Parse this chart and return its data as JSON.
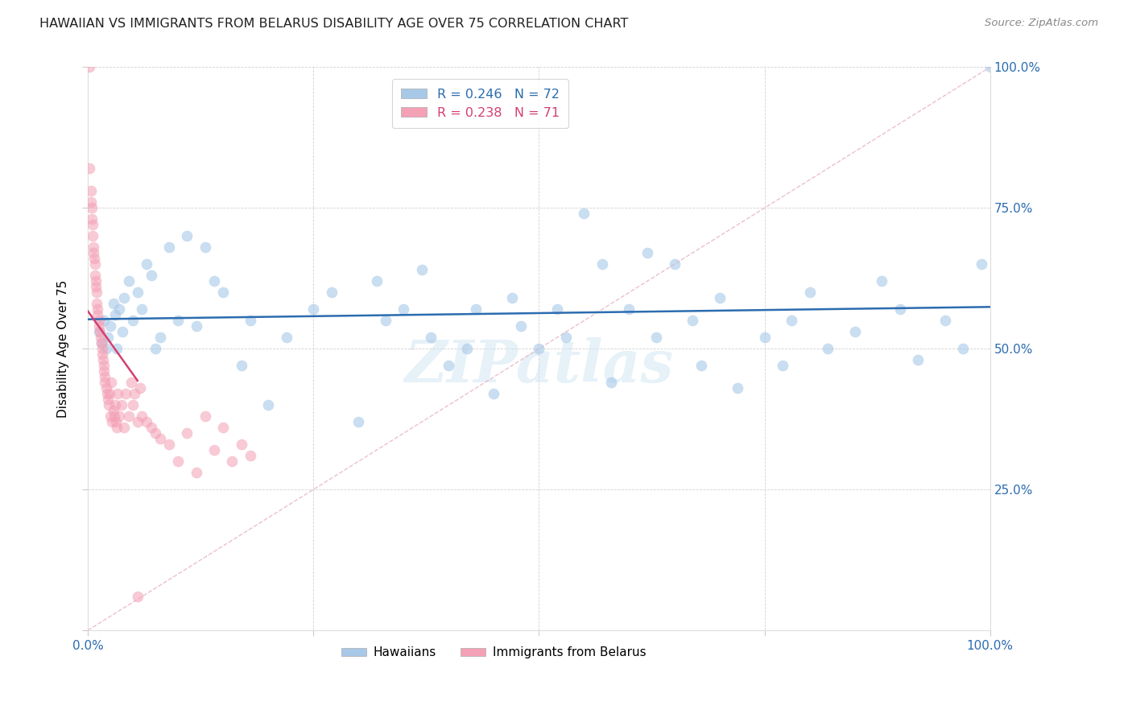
{
  "title": "HAWAIIAN VS IMMIGRANTS FROM BELARUS DISABILITY AGE OVER 75 CORRELATION CHART",
  "source": "Source: ZipAtlas.com",
  "ylabel": "Disability Age Over 75",
  "blue_color": "#a8c8e8",
  "blue_line_color": "#2b6cb0",
  "pink_color": "#f4a0b5",
  "pink_line_color": "#d44070",
  "diag_line_color": "#e8b0c0",
  "watermark": "ZIPatlas",
  "R_blue": 0.246,
  "N_blue": 72,
  "R_pink": 0.238,
  "N_pink": 71,
  "haw_x": [
    1.2,
    1.5,
    1.8,
    2.0,
    2.2,
    2.5,
    2.8,
    3.0,
    3.2,
    3.5,
    3.8,
    4.0,
    4.5,
    5.0,
    5.5,
    6.0,
    6.5,
    7.0,
    7.5,
    8.0,
    9.0,
    10.0,
    11.0,
    12.0,
    13.0,
    14.0,
    15.0,
    17.0,
    18.0,
    20.0,
    22.0,
    25.0,
    27.0,
    30.0,
    32.0,
    33.0,
    35.0,
    37.0,
    38.0,
    40.0,
    42.0,
    43.0,
    45.0,
    47.0,
    48.0,
    50.0,
    52.0,
    53.0,
    55.0,
    57.0,
    58.0,
    60.0,
    62.0,
    63.0,
    65.0,
    67.0,
    68.0,
    70.0,
    72.0,
    75.0,
    77.0,
    78.0,
    80.0,
    82.0,
    85.0,
    88.0,
    90.0,
    92.0,
    95.0,
    97.0,
    99.0,
    100.0
  ],
  "haw_y": [
    53.0,
    51.0,
    55.0,
    50.0,
    52.0,
    54.0,
    58.0,
    56.0,
    50.0,
    57.0,
    53.0,
    59.0,
    62.0,
    55.0,
    60.0,
    57.0,
    65.0,
    63.0,
    50.0,
    52.0,
    68.0,
    55.0,
    70.0,
    54.0,
    68.0,
    62.0,
    60.0,
    47.0,
    55.0,
    40.0,
    52.0,
    57.0,
    60.0,
    37.0,
    62.0,
    55.0,
    57.0,
    64.0,
    52.0,
    47.0,
    50.0,
    57.0,
    42.0,
    59.0,
    54.0,
    50.0,
    57.0,
    52.0,
    74.0,
    65.0,
    44.0,
    57.0,
    67.0,
    52.0,
    65.0,
    55.0,
    47.0,
    59.0,
    43.0,
    52.0,
    47.0,
    55.0,
    60.0,
    50.0,
    53.0,
    62.0,
    57.0,
    48.0,
    55.0,
    50.0,
    65.0,
    100.0
  ],
  "bel_x": [
    0.15,
    0.2,
    0.3,
    0.35,
    0.4,
    0.45,
    0.5,
    0.55,
    0.6,
    0.65,
    0.7,
    0.75,
    0.8,
    0.85,
    0.9,
    0.95,
    1.0,
    1.05,
    1.1,
    1.2,
    1.25,
    1.3,
    1.4,
    1.5,
    1.55,
    1.6,
    1.7,
    1.75,
    1.8,
    1.85,
    1.9,
    2.0,
    2.1,
    2.2,
    2.3,
    2.4,
    2.5,
    2.6,
    2.7,
    2.8,
    2.9,
    3.0,
    3.1,
    3.2,
    3.3,
    3.5,
    3.7,
    4.0,
    4.2,
    4.5,
    4.8,
    5.0,
    5.2,
    5.5,
    5.8,
    6.0,
    6.5,
    7.0,
    7.5,
    8.0,
    9.0,
    10.0,
    11.0,
    12.0,
    13.0,
    14.0,
    15.0,
    16.0,
    17.0,
    18.0,
    5.5
  ],
  "bel_y": [
    100.0,
    82.0,
    78.0,
    76.0,
    75.0,
    73.0,
    72.0,
    70.0,
    68.0,
    67.0,
    66.0,
    65.0,
    63.0,
    62.0,
    61.0,
    60.0,
    58.0,
    57.0,
    56.0,
    55.0,
    54.0,
    53.0,
    52.0,
    51.0,
    50.0,
    49.0,
    48.0,
    47.0,
    46.0,
    45.0,
    44.0,
    43.0,
    42.0,
    41.0,
    40.0,
    42.0,
    38.0,
    44.0,
    37.0,
    39.0,
    38.0,
    40.0,
    37.0,
    36.0,
    42.0,
    38.0,
    40.0,
    36.0,
    42.0,
    38.0,
    44.0,
    40.0,
    42.0,
    37.0,
    43.0,
    38.0,
    37.0,
    36.0,
    35.0,
    34.0,
    33.0,
    30.0,
    35.0,
    28.0,
    38.0,
    32.0,
    36.0,
    30.0,
    33.0,
    31.0,
    6.0
  ]
}
